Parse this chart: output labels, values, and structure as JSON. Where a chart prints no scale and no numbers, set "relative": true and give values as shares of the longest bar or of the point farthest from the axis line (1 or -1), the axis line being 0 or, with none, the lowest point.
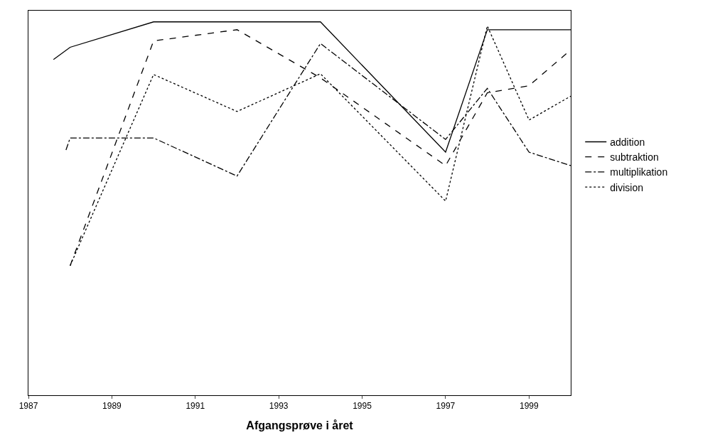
{
  "chart_data": {
    "type": "line",
    "xlabel": "Afgangsprøve i året",
    "relative": true,
    "tick_labels": "x",
    "legend": "right",
    "marker": "none",
    "xlim": [
      1987,
      2000
    ],
    "xticks": [
      1987,
      1989,
      1991,
      1993,
      1995,
      1997,
      1999
    ],
    "series": [
      {
        "name": "addition",
        "color": "#000000",
        "line_style": "solid",
        "x": [
          1987.6,
          1988,
          1990,
          1994,
          1997,
          1998,
          2000
        ],
        "values": [
          0.899,
          0.932,
          1.0,
          1.0,
          0.651,
          0.979,
          0.979
        ]
      },
      {
        "name": "subtraktion",
        "color": "#000000",
        "line_style": "dashed",
        "x": [
          1988,
          1990,
          1992,
          1994,
          1997,
          1998,
          1999,
          2000
        ],
        "values": [
          0.347,
          0.949,
          0.979,
          0.85,
          0.615,
          0.81,
          0.829,
          0.925
        ]
      },
      {
        "name": "multiplikation",
        "color": "#000000",
        "line_style": "dashdot",
        "x": [
          1987.9,
          1988,
          1990,
          1992,
          1994,
          1997,
          1998,
          1999,
          2000
        ],
        "values": [
          0.657,
          0.689,
          0.689,
          0.587,
          0.942,
          0.685,
          0.822,
          0.651,
          0.615
        ]
      },
      {
        "name": "division",
        "color": "#000000",
        "line_style": "dotted",
        "x": [
          1988,
          1990,
          1992,
          1994,
          1997,
          1998,
          1999,
          2000
        ],
        "values": [
          0.347,
          0.859,
          0.76,
          0.861,
          0.52,
          0.989,
          0.737,
          0.801
        ]
      }
    ]
  }
}
